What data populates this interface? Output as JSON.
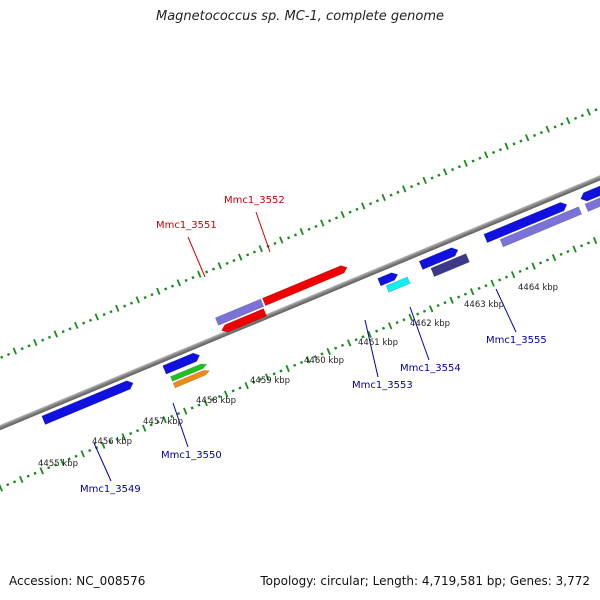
{
  "title": "Magnetococcus sp. MC-1, complete genome",
  "footer": {
    "accession": "Accession: NC_008576",
    "summary": "Topology: circular; Length: 4,719,581 bp; Genes: 3,772"
  },
  "colors": {
    "backbone": "#8a8a8a",
    "tick": "#1a8a1a",
    "label_red": "#cc0000",
    "label_blue": "#0000aa",
    "blue": "#1010e0",
    "light_purple": "#7a72d8",
    "red": "#f00000",
    "green": "#1ec21e",
    "orange": "#f08a10",
    "cyan": "#10f0f0",
    "dark_purple": "#3b3a88"
  },
  "scale_labels": [
    "4455 kbp",
    "4456 kbp",
    "4457 kbp",
    "4458 kbp",
    "4459 kbp",
    "4460 kbp",
    "4461 kbp",
    "4462 kbp",
    "4463 kbp",
    "4464 kbp"
  ],
  "genes": [
    {
      "name": "Mmc1_3549",
      "label_color": "blue"
    },
    {
      "name": "Mmc1_3550",
      "label_color": "blue"
    },
    {
      "name": "Mmc1_3551",
      "label_color": "red"
    },
    {
      "name": "Mmc1_3552",
      "label_color": "red"
    },
    {
      "name": "Mmc1_3553",
      "label_color": "blue"
    },
    {
      "name": "Mmc1_3554",
      "label_color": "blue"
    },
    {
      "name": "Mmc1_3555",
      "label_color": "blue"
    }
  ]
}
